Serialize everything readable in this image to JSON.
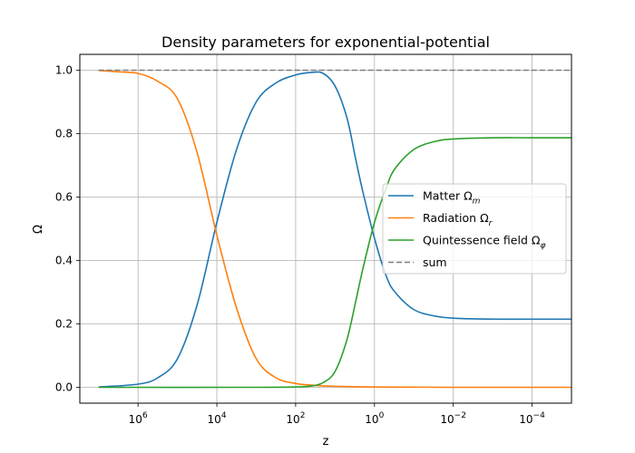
{
  "chart_data": {
    "type": "line",
    "title": "Density parameters for exponential-potential",
    "xlabel": "z",
    "ylabel": "Ω",
    "x_scale": "log",
    "x_inverted": true,
    "xlim": [
      30000000,
      1e-05
    ],
    "ylim": [
      -0.05,
      1.05
    ],
    "x_ticks": [
      {
        "value": 1000000,
        "base": "10",
        "exp": "6"
      },
      {
        "value": 10000,
        "base": "10",
        "exp": "4"
      },
      {
        "value": 100,
        "base": "10",
        "exp": "2"
      },
      {
        "value": 1,
        "base": "10",
        "exp": "0"
      },
      {
        "value": 0.01,
        "base": "10",
        "exp": "−2"
      },
      {
        "value": 0.0001,
        "base": "10",
        "exp": "−4"
      }
    ],
    "y_ticks": [
      {
        "value": 0.0,
        "label": "0.0"
      },
      {
        "value": 0.2,
        "label": "0.2"
      },
      {
        "value": 0.4,
        "label": "0.4"
      },
      {
        "value": 0.6,
        "label": "0.6"
      },
      {
        "value": 0.8,
        "label": "0.8"
      },
      {
        "value": 1.0,
        "label": "1.0"
      }
    ],
    "grid": true,
    "legend_position": "center-right",
    "series": [
      {
        "name": "Matter",
        "symbol": "Ω",
        "subscript": "m",
        "color": "#1f77b4",
        "style": "solid",
        "x": [
          10000000,
          1000000,
          316228,
          100000,
          31623,
          10000,
          3162,
          1000,
          316,
          100,
          40,
          20,
          10,
          5,
          3,
          2,
          1,
          0.5,
          0.3,
          0.1,
          0.03,
          0.01,
          0.001,
          0.0001,
          1e-05
        ],
        "y": [
          0.001,
          0.01,
          0.03,
          0.09,
          0.26,
          0.52,
          0.75,
          0.9,
          0.96,
          0.985,
          0.993,
          0.99,
          0.95,
          0.85,
          0.72,
          0.62,
          0.47,
          0.35,
          0.3,
          0.245,
          0.225,
          0.218,
          0.215,
          0.215,
          0.215
        ]
      },
      {
        "name": "Radiation",
        "symbol": "Ω",
        "subscript": "r",
        "color": "#ff7f0e",
        "style": "solid",
        "x": [
          10000000,
          3162278,
          1000000,
          316228,
          100000,
          31623,
          10000,
          3162,
          1000,
          316,
          100,
          31.6,
          10,
          1,
          0.1,
          0.01,
          1e-05
        ],
        "y": [
          0.999,
          0.995,
          0.99,
          0.965,
          0.91,
          0.74,
          0.48,
          0.25,
          0.09,
          0.03,
          0.012,
          0.006,
          0.003,
          0.001,
          0.0005,
          0.0,
          0.0
        ]
      },
      {
        "name": "Quintessence field",
        "symbol": "Ω",
        "subscript": "φ",
        "color": "#2ca02c",
        "style": "solid",
        "x": [
          10000000,
          1000,
          100,
          40,
          20,
          10,
          5,
          3,
          2,
          1,
          0.5,
          0.3,
          0.1,
          0.03,
          0.01,
          0.001,
          0.0001,
          1e-05
        ],
        "y": [
          0.0,
          0.0,
          0.001,
          0.004,
          0.015,
          0.05,
          0.15,
          0.27,
          0.37,
          0.52,
          0.63,
          0.69,
          0.75,
          0.775,
          0.783,
          0.787,
          0.787,
          0.787
        ]
      },
      {
        "name": "sum",
        "color": "#7f7f7f",
        "style": "dashed",
        "x": [
          10000000,
          1e-05
        ],
        "y": [
          1.0,
          1.0
        ]
      }
    ]
  }
}
